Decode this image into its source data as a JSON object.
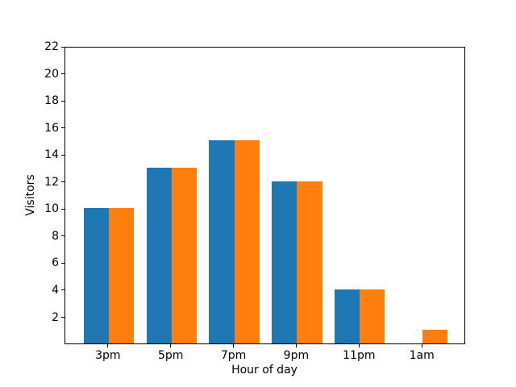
{
  "chart_data": {
    "type": "bar",
    "title": "",
    "xlabel": "Hour of day",
    "ylabel": "Visitors",
    "categories": [
      "3pm",
      "5pm",
      "7pm",
      "9pm",
      "11pm",
      "1am"
    ],
    "series": [
      {
        "name": "blue-series",
        "color": "#1f77b4",
        "values": [
          10,
          13,
          15,
          12,
          4,
          0
        ]
      },
      {
        "name": "orange-series",
        "color": "#ff7f0e",
        "values": [
          10,
          13,
          15,
          12,
          4,
          1
        ]
      }
    ],
    "ylim": [
      0,
      22
    ],
    "yticks": [
      2,
      4,
      6,
      8,
      10,
      12,
      14,
      16,
      18,
      20,
      22
    ],
    "grid": false,
    "legend": null,
    "background_color": "#ffffff",
    "spine_color": "#000000"
  }
}
